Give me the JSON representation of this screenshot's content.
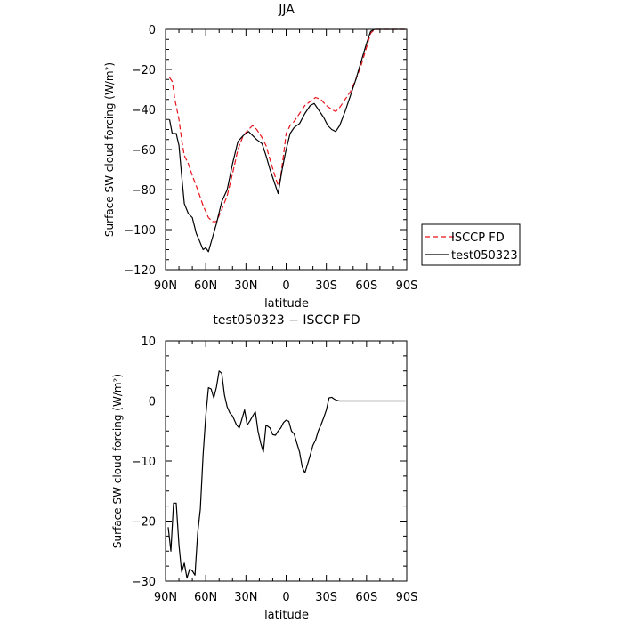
{
  "chart_data": [
    {
      "type": "line",
      "title": "JJA",
      "xlabel": "latitude",
      "ylabel": "Surface SW cloud forcing (W/m²)",
      "xlim": [
        -90,
        90
      ],
      "ylim": [
        -120,
        0
      ],
      "xticks": [
        {
          "v": -90,
          "label": "90N"
        },
        {
          "v": -60,
          "label": "60N"
        },
        {
          "v": -30,
          "label": "30N"
        },
        {
          "v": 0,
          "label": "0"
        },
        {
          "v": 30,
          "label": "30S"
        },
        {
          "v": 60,
          "label": "60S"
        },
        {
          "v": 90,
          "label": "90S"
        }
      ],
      "yticks": [
        {
          "v": 0,
          "label": "0"
        },
        {
          "v": -20,
          "label": "−20"
        },
        {
          "v": -40,
          "label": "−40"
        },
        {
          "v": -60,
          "label": "−60"
        },
        {
          "v": -80,
          "label": "−80"
        },
        {
          "v": -100,
          "label": "−100"
        },
        {
          "v": -120,
          "label": "−120"
        }
      ],
      "legend_position": "right of plot",
      "series": [
        {
          "name": "ISCCP FD",
          "color": "#e8141c",
          "dash": "dashed",
          "x": [
            -87,
            -85,
            -83,
            -80,
            -78,
            -76,
            -73,
            -70,
            -66,
            -62,
            -58,
            -55,
            -52,
            -48,
            -44,
            -40,
            -36,
            -32,
            -28,
            -25,
            -22,
            -18,
            -15,
            -12,
            -8,
            -6,
            -4,
            -2,
            0,
            3,
            6,
            10,
            14,
            18,
            22,
            26,
            30,
            34,
            37,
            40,
            44,
            48,
            52,
            56,
            60,
            63,
            66,
            70,
            75,
            80,
            85,
            89
          ],
          "y": [
            -24,
            -26,
            -35,
            -45,
            -55,
            -63,
            -67,
            -73,
            -80,
            -88,
            -94,
            -96,
            -96,
            -90,
            -83,
            -72,
            -60,
            -53,
            -50,
            -48,
            -50,
            -54,
            -58,
            -65,
            -74,
            -78,
            -73,
            -63,
            -52,
            -48,
            -46,
            -42,
            -38,
            -36,
            -34,
            -35,
            -38,
            -40,
            -41,
            -39,
            -35,
            -31,
            -25,
            -18,
            -9,
            -2,
            0,
            0,
            0,
            0,
            0,
            0
          ]
        },
        {
          "name": "test050323",
          "color": "#000000",
          "dash": "solid",
          "x": [
            -87,
            -85,
            -82,
            -80,
            -78,
            -76,
            -73,
            -70,
            -67,
            -65,
            -62,
            -60,
            -58,
            -55,
            -52,
            -48,
            -44,
            -40,
            -36,
            -32,
            -28,
            -25,
            -22,
            -18,
            -15,
            -12,
            -8,
            -6,
            -3,
            0,
            3,
            6,
            10,
            14,
            18,
            21,
            24,
            28,
            31,
            34,
            37,
            40,
            44,
            48,
            52,
            56,
            60,
            63,
            66,
            70,
            75,
            80,
            85,
            89
          ],
          "y": [
            -45,
            -52,
            -52,
            -58,
            -73,
            -87,
            -92,
            -94,
            -102,
            -105,
            -110,
            -109,
            -111,
            -104,
            -97,
            -86,
            -80,
            -67,
            -56,
            -53,
            -51,
            -53,
            -55,
            -57,
            -63,
            -70,
            -78,
            -82,
            -70,
            -60,
            -52,
            -49,
            -47,
            -42,
            -38,
            -37,
            -40,
            -44,
            -48,
            -50,
            -51,
            -48,
            -41,
            -33,
            -25,
            -16,
            -7,
            -1,
            0,
            0,
            0,
            0,
            0,
            0
          ]
        }
      ]
    },
    {
      "type": "line",
      "title": "test050323 − ISCCP FD",
      "xlabel": "latitude",
      "ylabel": "Surface SW cloud forcing (W/m²)",
      "xlim": [
        -90,
        90
      ],
      "ylim": [
        -30,
        10
      ],
      "xticks": [
        {
          "v": -90,
          "label": "90N"
        },
        {
          "v": -60,
          "label": "60N"
        },
        {
          "v": -30,
          "label": "30N"
        },
        {
          "v": 0,
          "label": "0"
        },
        {
          "v": 30,
          "label": "30S"
        },
        {
          "v": 60,
          "label": "60S"
        },
        {
          "v": 90,
          "label": "90S"
        }
      ],
      "yticks": [
        {
          "v": 10,
          "label": "10"
        },
        {
          "v": 0,
          "label": "0"
        },
        {
          "v": -10,
          "label": "−10"
        },
        {
          "v": -20,
          "label": "−20"
        },
        {
          "v": -30,
          "label": "−30"
        }
      ],
      "series": [
        {
          "color": "#000000",
          "dash": "solid",
          "x": [
            -88,
            -86,
            -84,
            -82,
            -80,
            -78,
            -76,
            -74,
            -72,
            -70,
            -68,
            -66,
            -64,
            -62,
            -60,
            -58,
            -56,
            -54,
            -52,
            -50,
            -48,
            -46,
            -44,
            -42,
            -40,
            -37,
            -35,
            -33,
            -31,
            -29,
            -27,
            -25,
            -23,
            -21,
            -19,
            -17,
            -15,
            -12,
            -10,
            -8,
            -6,
            -4,
            -2,
            0,
            2,
            4,
            6,
            8,
            10,
            12,
            14,
            16,
            18,
            20,
            22,
            24,
            26,
            28,
            30,
            32,
            34,
            36,
            38,
            40,
            42,
            44,
            46,
            48,
            50,
            52,
            54,
            56,
            58,
            60,
            62,
            64,
            66,
            68,
            70,
            74,
            78,
            82,
            86,
            89
          ],
          "y": [
            -21,
            -25,
            -17,
            -17,
            -24,
            -28.5,
            -27,
            -29.5,
            -28,
            -28.3,
            -29,
            -22,
            -18,
            -9,
            -2.5,
            2.2,
            2,
            0.5,
            2.3,
            5,
            4.6,
            1,
            -1,
            -2,
            -2.5,
            -4,
            -4.5,
            -3,
            -1.5,
            -4,
            -3.3,
            -2.5,
            -1.8,
            -5,
            -7,
            -8.5,
            -4,
            -4.5,
            -5.6,
            -5.7,
            -5,
            -4.5,
            -3.6,
            -3.2,
            -3.4,
            -5,
            -5.5,
            -7,
            -8.5,
            -11,
            -12,
            -10.5,
            -9,
            -7.4,
            -6.5,
            -5,
            -4,
            -2.8,
            -1.5,
            0.5,
            0.6,
            0.3,
            0.1,
            0,
            0,
            0,
            0,
            0,
            0,
            0,
            0,
            0,
            0,
            0,
            0,
            0,
            0,
            0,
            0,
            0,
            0,
            0,
            0,
            0
          ],
          "_note": ""
        }
      ]
    }
  ]
}
